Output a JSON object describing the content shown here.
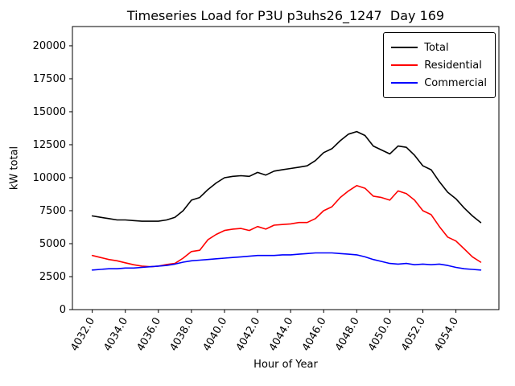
{
  "title": "Timeseries Load for P3U p3uhs26_1247  Day 169",
  "xlabel": "Hour of Year",
  "ylabel": "kW total",
  "chart_data": {
    "type": "line",
    "x": [
      4032,
      4032.5,
      4033,
      4033.5,
      4034,
      4034.5,
      4035,
      4035.5,
      4036,
      4036.5,
      4037,
      4037.5,
      4038,
      4038.5,
      4039,
      4039.5,
      4040,
      4040.5,
      4041,
      4041.5,
      4042,
      4042.5,
      4043,
      4043.5,
      4044,
      4044.5,
      4045,
      4045.5,
      4046,
      4046.5,
      4047,
      4047.5,
      4048,
      4048.5,
      4049,
      4049.5,
      4050,
      4050.5,
      4051,
      4051.5,
      4052,
      4052.5,
      4053,
      4053.5,
      4054,
      4054.5,
      4055,
      4055.5
    ],
    "series": [
      {
        "name": "Total",
        "color": "#000000",
        "values": [
          7100,
          7000,
          6900,
          6800,
          6800,
          6750,
          6700,
          6700,
          6700,
          6800,
          7000,
          7500,
          8300,
          8500,
          9100,
          9600,
          10000,
          10100,
          10150,
          10100,
          10400,
          10200,
          10500,
          10600,
          10700,
          10800,
          10900,
          11300,
          11900,
          12200,
          12800,
          13300,
          13500,
          13200,
          12400,
          12100,
          11800,
          12400,
          12300,
          11700,
          10900,
          10600,
          9700,
          8900,
          8400,
          7700,
          7100,
          6600
        ]
      },
      {
        "name": "Residential",
        "color": "#ff0000",
        "values": [
          4100,
          3950,
          3800,
          3700,
          3550,
          3400,
          3300,
          3250,
          3300,
          3420,
          3500,
          3900,
          4400,
          4500,
          5300,
          5700,
          6000,
          6100,
          6150,
          6000,
          6300,
          6100,
          6400,
          6450,
          6500,
          6600,
          6600,
          6900,
          7500,
          7800,
          8500,
          9000,
          9400,
          9200,
          8600,
          8500,
          8300,
          9000,
          8800,
          8300,
          7500,
          7200,
          6300,
          5500,
          5200,
          4600,
          4000,
          3600
        ]
      },
      {
        "name": "Commercial",
        "color": "#0000ff",
        "values": [
          3000,
          3050,
          3100,
          3100,
          3150,
          3150,
          3200,
          3250,
          3300,
          3350,
          3450,
          3600,
          3700,
          3750,
          3800,
          3850,
          3900,
          3950,
          4000,
          4050,
          4100,
          4100,
          4100,
          4150,
          4150,
          4200,
          4250,
          4300,
          4300,
          4300,
          4250,
          4200,
          4150,
          4000,
          3800,
          3650,
          3500,
          3450,
          3500,
          3400,
          3450,
          3400,
          3450,
          3350,
          3200,
          3100,
          3050,
          3000
        ]
      }
    ],
    "xticks": [
      4032,
      4034,
      4036,
      4038,
      4040,
      4042,
      4044,
      4046,
      4048,
      4050,
      4052,
      4054
    ],
    "xtick_labels": [
      "4032.0",
      "4034.0",
      "4036.0",
      "4038.0",
      "4040.0",
      "4042.0",
      "4044.0",
      "4046.0",
      "4048.0",
      "4050.0",
      "4052.0",
      "4054.0"
    ],
    "yticks": [
      0,
      2500,
      5000,
      7500,
      10000,
      12500,
      15000,
      17500,
      20000
    ],
    "ytick_labels": [
      "0",
      "2500",
      "5000",
      "7500",
      "10000",
      "12500",
      "15000",
      "17500",
      "20000"
    ],
    "xlim": [
      4030.8,
      4056.6
    ],
    "ylim": [
      0,
      21460
    ],
    "grid": false,
    "legend_position": "upper right"
  }
}
